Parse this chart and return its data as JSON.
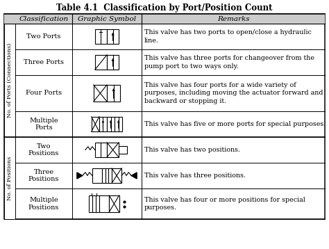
{
  "title": "Table 4.1  Classification by Port/Position Count",
  "col_headers": [
    "Classification",
    "Graphic Symbol",
    "Remarks"
  ],
  "title_fontsize": 8.5,
  "header_fontsize": 7.5,
  "body_fontsize": 7.0,
  "remarks_fontsize": 6.8,
  "rot_label_fontsize": 5.8,
  "header_bg": "#cccccc",
  "rows": [
    {
      "group": "ports",
      "classification": "Two Ports",
      "symbol_type": "two_ports",
      "remarks": "This valve has two ports to open/close a hydraulic\nline."
    },
    {
      "group": "ports",
      "classification": "Three Ports",
      "symbol_type": "three_ports",
      "remarks": "This valve has three ports for changeover from the\npump port to two ways only."
    },
    {
      "group": "ports",
      "classification": "Four Ports",
      "symbol_type": "four_ports",
      "remarks": "This valve has four ports for a wide variety of\npurposes, including moving the actuator forward and\nbackward or stopping it."
    },
    {
      "group": "ports",
      "classification": "Multiple\nPorts",
      "symbol_type": "multiple_ports",
      "remarks": "This valve has five or more ports for special purposes."
    },
    {
      "group": "positions",
      "classification": "Two\nPositions",
      "symbol_type": "two_positions",
      "remarks": "This valve has two positions."
    },
    {
      "group": "positions",
      "classification": "Three\nPositions",
      "symbol_type": "three_positions",
      "remarks": "This valve has three positions."
    },
    {
      "group": "positions",
      "classification": "Multiple\nPositions",
      "symbol_type": "multiple_positions",
      "remarks": "This valve has four or more positions for special\npurposes."
    }
  ],
  "group_labels": {
    "ports": "No. of Ports (Connections)",
    "positions": "No. of Positions"
  }
}
